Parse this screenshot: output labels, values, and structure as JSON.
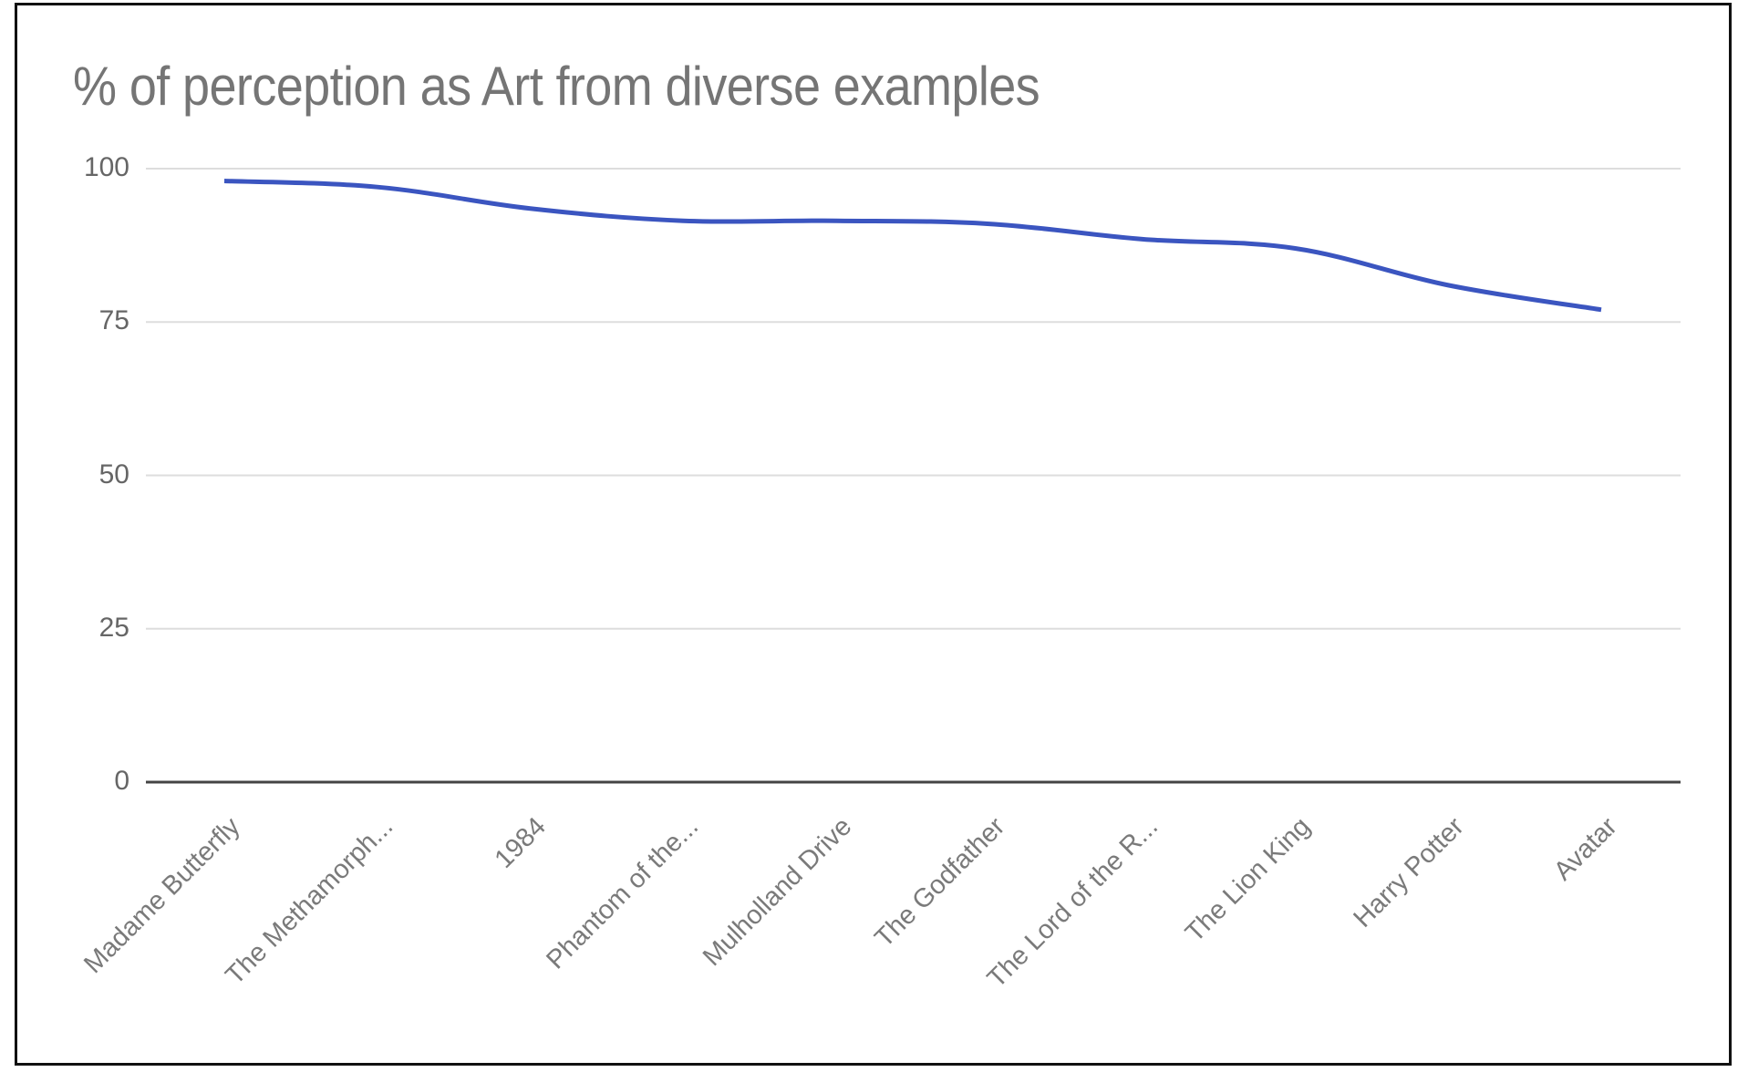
{
  "chart_data": {
    "type": "line",
    "title": "% of perception as Art from diverse examples",
    "xlabel": "",
    "ylabel": "",
    "categories": [
      "Madame Butterfly",
      "The Methamorph...",
      "1984",
      "Phantom of the...",
      "Mulholland Drive",
      "The Godfather",
      "The Lord of the R...",
      "The Lion King",
      "Harry Potter",
      "Avatar"
    ],
    "series": [
      {
        "name": "% of perception as Art",
        "color": "#3b55c0",
        "values": [
          98,
          97,
          93.5,
          91.5,
          91.5,
          91,
          88.5,
          87,
          81,
          77
        ]
      }
    ],
    "ylim": [
      0,
      100
    ],
    "yticks": [
      0,
      25,
      50,
      75,
      100
    ],
    "ytick_labels": [
      "0",
      "25",
      "50",
      "75",
      "100"
    ],
    "grid": true,
    "legend": "none",
    "smooth": true
  },
  "colors": {
    "line": "#3b55c0",
    "gridline": "#dddddd",
    "axis": "#444444",
    "title_text": "#757575",
    "tick_text": "#666666"
  }
}
